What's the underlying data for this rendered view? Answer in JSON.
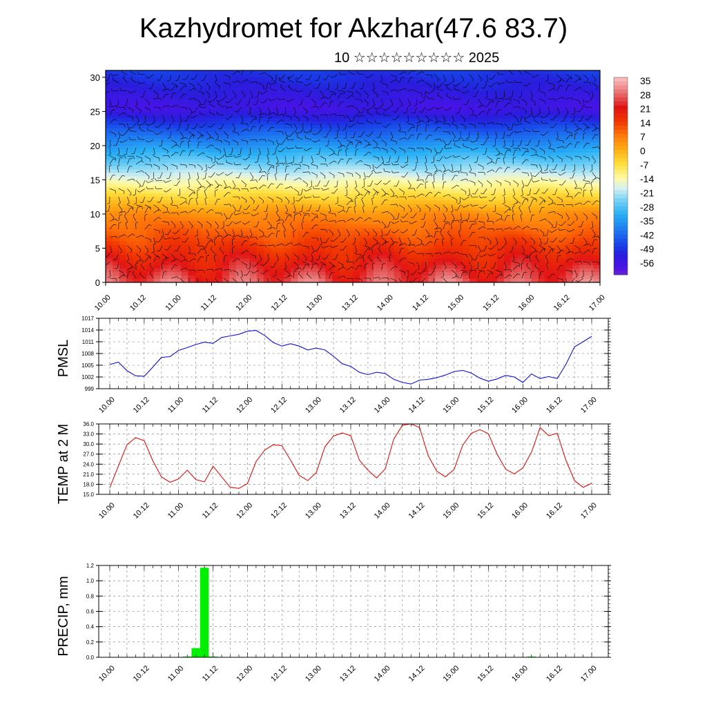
{
  "header": {
    "title": "Kazhydromet for Akzhar(47.6 83.7)",
    "subtitle": "10 ☆☆☆☆☆☆☆☆☆ 2025"
  },
  "colors": {
    "pmsl_line": "#1010d0",
    "temp_line": "#e01010",
    "precip_bar": "#00ee00",
    "frame": "#000000"
  },
  "chart_data": [
    {
      "type": "heatmap",
      "title": "",
      "xlabel": "",
      "ylabel": "",
      "x_ticks": [
        "10.00",
        "10.12",
        "11.00",
        "11.12",
        "12.00",
        "12.12",
        "13.00",
        "13.12",
        "14.00",
        "14.12",
        "15.00",
        "15.12",
        "16.00",
        "16.12",
        "17.00"
      ],
      "y_ticks": [
        "0",
        "5",
        "10",
        "15",
        "20",
        "25",
        "30"
      ],
      "ylim": [
        0,
        31
      ],
      "colorbar_labels": [
        "35",
        "28",
        "21",
        "14",
        "7",
        "0",
        "-7",
        "-14",
        "-21",
        "-28",
        "-35",
        "-42",
        "-49",
        "-56"
      ],
      "colorbar_range": [
        -60,
        38
      ],
      "overlay": "wind barbs"
    },
    {
      "type": "line",
      "ylabel": "PMSL",
      "x_ticks": [
        "10.00",
        "10.12",
        "11.00",
        "11.12",
        "12.00",
        "12.12",
        "13.00",
        "13.12",
        "14.00",
        "14.12",
        "15.00",
        "15.12",
        "16.00",
        "16.12",
        "17.00"
      ],
      "y_ticks": [
        "999",
        "1002",
        "1005",
        "1008",
        "1011",
        "1014",
        "1017"
      ],
      "ylim": [
        999,
        1017
      ],
      "x_hours_step": 3,
      "values": [
        1005.2,
        1005.8,
        1003.6,
        1002.3,
        1002.2,
        1004.5,
        1007.0,
        1007.2,
        1008.8,
        1009.5,
        1010.3,
        1010.9,
        1010.6,
        1012.1,
        1012.5,
        1012.9,
        1013.7,
        1013.9,
        1012.6,
        1010.8,
        1009.9,
        1010.5,
        1009.9,
        1008.9,
        1009.4,
        1008.9,
        1007.3,
        1005.4,
        1004.7,
        1003.2,
        1002.6,
        1003.2,
        1002.9,
        1001.4,
        1000.6,
        1000.2,
        1001.2,
        1001.4,
        1001.8,
        1002.5,
        1003.4,
        1003.7,
        1003.0,
        1001.7,
        1000.9,
        1001.5,
        1002.4,
        1002.0,
        1000.6,
        1002.8,
        1001.6,
        1002.1,
        1001.6,
        1005.2,
        1009.7,
        1011.0,
        1012.4
      ]
    },
    {
      "type": "line",
      "ylabel": "TEMP at 2 M",
      "x_ticks": [
        "10.00",
        "10.12",
        "11.00",
        "11.12",
        "12.00",
        "12.12",
        "13.00",
        "13.12",
        "14.00",
        "14.12",
        "15.00",
        "15.12",
        "16.00",
        "16.12",
        "17.00"
      ],
      "y_ticks": [
        "15.0",
        "18.0",
        "21.0",
        "24.0",
        "27.0",
        "30.0",
        "33.0",
        "36.0"
      ],
      "ylim": [
        15,
        36
      ],
      "x_hours_step": 3,
      "values": [
        17.0,
        23.5,
        29.8,
        31.9,
        31.0,
        25.0,
        20.2,
        18.6,
        19.6,
        22.2,
        19.4,
        18.7,
        23.4,
        20.2,
        17.1,
        16.8,
        18.2,
        24.8,
        28.2,
        29.8,
        29.5,
        25.2,
        20.7,
        19.1,
        21.5,
        29.2,
        32.4,
        33.3,
        32.5,
        25.2,
        22.2,
        19.9,
        22.6,
        31.5,
        35.6,
        36.0,
        34.9,
        26.5,
        21.9,
        20.2,
        22.4,
        29.6,
        33.2,
        34.3,
        33.1,
        27.0,
        22.5,
        21.1,
        22.9,
        27.6,
        34.9,
        32.5,
        33.2,
        25.2,
        19.1,
        17.1,
        18.3
      ]
    },
    {
      "type": "bar",
      "ylabel": "PRECIP, mm",
      "x_ticks": [
        "10.00",
        "10.12",
        "11.00",
        "11.12",
        "12.00",
        "12.12",
        "13.00",
        "13.12",
        "14.00",
        "14.12",
        "15.00",
        "15.12",
        "16.00",
        "16.12",
        "17.00"
      ],
      "y_ticks": [
        "0.0",
        "0.2",
        "0.4",
        "0.6",
        "0.8",
        "1.0",
        "1.2"
      ],
      "ylim": [
        0,
        1.2
      ],
      "x_hours_step": 3,
      "values": [
        0,
        0,
        0,
        0,
        0,
        0,
        0,
        0,
        0,
        0.01,
        0.12,
        1.17,
        0.01,
        0,
        0,
        0,
        0,
        0,
        0,
        0,
        0,
        0,
        0,
        0,
        0,
        0,
        0,
        0,
        0,
        0,
        0,
        0,
        0,
        0,
        0,
        0,
        0,
        0,
        0,
        0,
        0,
        0,
        0,
        0,
        0,
        0,
        0,
        0,
        0,
        0.01,
        0,
        0,
        0,
        0,
        0,
        0,
        0
      ]
    }
  ]
}
